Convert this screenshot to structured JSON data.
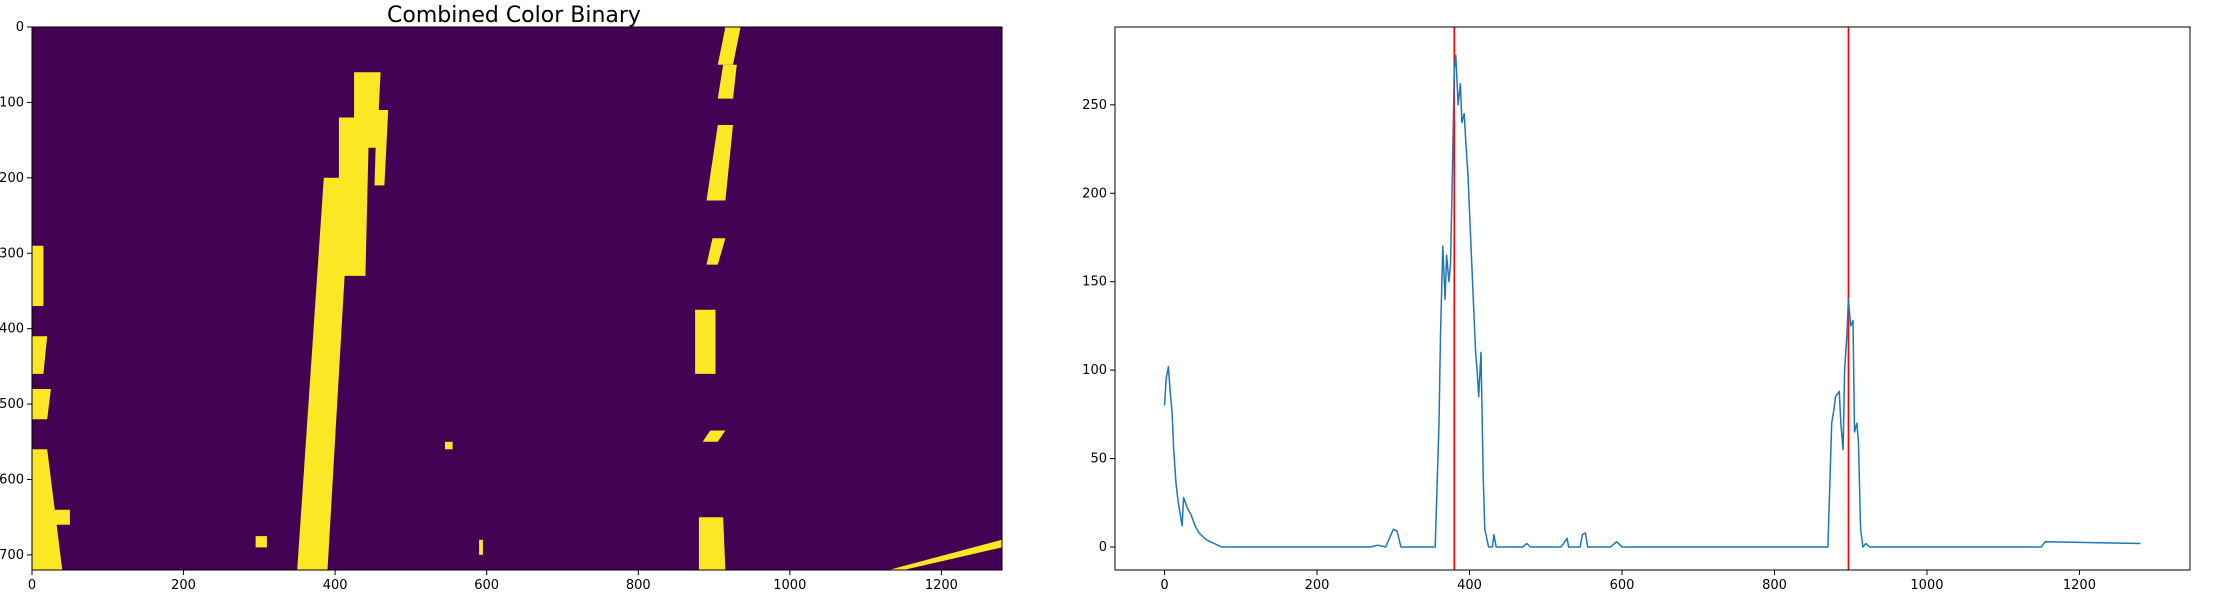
{
  "chart_data": [
    {
      "type": "heatmap",
      "title": "Combined Color Binary",
      "xlim": [
        0,
        1280
      ],
      "ylim": [
        720,
        0
      ],
      "xticks": [
        0,
        200,
        400,
        600,
        800,
        1000,
        1200
      ],
      "yticks": [
        0,
        100,
        200,
        300,
        400,
        500,
        600,
        700
      ],
      "colors": {
        "background": "#440154",
        "foreground": "#fde725"
      },
      "values_description_free": true,
      "bright_regions": [
        {
          "polygon": [
            [
              385,
              200
            ],
            [
              420,
              200
            ],
            [
              390,
              720
            ],
            [
              350,
              720
            ]
          ]
        },
        {
          "polygon": [
            [
              405,
              120
            ],
            [
              445,
              120
            ],
            [
              440,
              330
            ],
            [
              405,
              330
            ]
          ]
        },
        {
          "polygon": [
            [
              425,
              60
            ],
            [
              460,
              60
            ],
            [
              455,
              160
            ],
            [
              425,
              160
            ]
          ]
        },
        {
          "polygon": [
            [
              455,
              110
            ],
            [
              470,
              110
            ],
            [
              465,
              210
            ],
            [
              452,
              210
            ]
          ]
        },
        {
          "polygon": [
            [
              915,
              0
            ],
            [
              935,
              0
            ],
            [
              925,
              50
            ],
            [
              905,
              50
            ]
          ]
        },
        {
          "polygon": [
            [
              912,
              50
            ],
            [
              930,
              50
            ],
            [
              925,
              95
            ],
            [
              905,
              95
            ]
          ]
        },
        {
          "polygon": [
            [
              905,
              130
            ],
            [
              925,
              130
            ],
            [
              915,
              230
            ],
            [
              890,
              230
            ]
          ]
        },
        {
          "polygon": [
            [
              898,
              280
            ],
            [
              915,
              280
            ],
            [
              905,
              315
            ],
            [
              890,
              315
            ]
          ]
        },
        {
          "polygon": [
            [
              875,
              375
            ],
            [
              902,
              375
            ],
            [
              902,
              460
            ],
            [
              875,
              460
            ]
          ]
        },
        {
          "polygon": [
            [
              895,
              535
            ],
            [
              915,
              535
            ],
            [
              905,
              550
            ],
            [
              885,
              550
            ]
          ]
        },
        {
          "polygon": [
            [
              880,
              650
            ],
            [
              912,
              650
            ],
            [
              915,
              720
            ],
            [
              880,
              720
            ]
          ]
        },
        {
          "polygon": [
            [
              0,
              290
            ],
            [
              15,
              290
            ],
            [
              15,
              370
            ],
            [
              0,
              370
            ]
          ]
        },
        {
          "polygon": [
            [
              0,
              410
            ],
            [
              20,
              410
            ],
            [
              15,
              460
            ],
            [
              0,
              460
            ]
          ]
        },
        {
          "polygon": [
            [
              0,
              480
            ],
            [
              25,
              480
            ],
            [
              20,
              520
            ],
            [
              0,
              520
            ]
          ]
        },
        {
          "polygon": [
            [
              0,
              560
            ],
            [
              20,
              560
            ],
            [
              40,
              720
            ],
            [
              0,
              720
            ]
          ]
        },
        {
          "polygon": [
            [
              20,
              640
            ],
            [
              50,
              640
            ],
            [
              50,
              660
            ],
            [
              20,
              660
            ]
          ]
        },
        {
          "polygon": [
            [
              1130,
              720
            ],
            [
              1280,
              680
            ],
            [
              1280,
              690
            ],
            [
              1150,
              720
            ]
          ]
        },
        {
          "polygon": [
            [
              295,
              675
            ],
            [
              310,
              675
            ],
            [
              310,
              690
            ],
            [
              295,
              690
            ]
          ]
        },
        {
          "polygon": [
            [
              545,
              550
            ],
            [
              555,
              550
            ],
            [
              555,
              560
            ],
            [
              545,
              560
            ]
          ]
        },
        {
          "polygon": [
            [
              590,
              680
            ],
            [
              595,
              680
            ],
            [
              595,
              700
            ],
            [
              590,
              700
            ]
          ]
        }
      ]
    },
    {
      "type": "line",
      "xlim": [
        -65,
        1345
      ],
      "ylim": [
        -13,
        294
      ],
      "xticks": [
        0,
        200,
        400,
        600,
        800,
        1000,
        1200
      ],
      "yticks": [
        0,
        50,
        100,
        150,
        200,
        250
      ],
      "series_color": "#1f77b4",
      "vlines": [
        {
          "x": 380,
          "color": "#ff0000"
        },
        {
          "x": 897,
          "color": "#ff0000"
        }
      ],
      "x": [
        0,
        2,
        5,
        7,
        10,
        12,
        15,
        18,
        20,
        23,
        25,
        30,
        35,
        40,
        45,
        50,
        55,
        60,
        65,
        70,
        75,
        80,
        100,
        150,
        200,
        250,
        270,
        280,
        290,
        295,
        300,
        305,
        310,
        320,
        340,
        355,
        360,
        362,
        365,
        368,
        370,
        373,
        375,
        377,
        380,
        382,
        385,
        388,
        390,
        393,
        395,
        398,
        400,
        402,
        405,
        408,
        410,
        412,
        415,
        418,
        420,
        425,
        430,
        432,
        435,
        440,
        470,
        475,
        480,
        520,
        525,
        528,
        530,
        545,
        548,
        552,
        555,
        585,
        590,
        593,
        600,
        650,
        700,
        750,
        800,
        850,
        870,
        875,
        878,
        880,
        885,
        887,
        890,
        892,
        895,
        897,
        900,
        903,
        905,
        908,
        910,
        913,
        916,
        920,
        925,
        930,
        935,
        940,
        1000,
        1100,
        1140,
        1150,
        1155,
        1280
      ],
      "y": [
        80,
        95,
        102,
        90,
        75,
        55,
        36,
        25,
        20,
        12,
        28,
        22,
        18,
        12,
        8,
        6,
        4,
        3,
        2,
        1,
        0,
        0,
        0,
        0,
        0,
        0,
        0,
        1,
        0,
        5,
        10,
        9,
        0,
        0,
        0,
        0,
        70,
        120,
        170,
        140,
        165,
        150,
        160,
        200,
        270,
        278,
        250,
        262,
        240,
        245,
        230,
        210,
        190,
        170,
        140,
        110,
        100,
        85,
        110,
        40,
        10,
        0,
        0,
        7,
        0,
        0,
        0,
        2,
        0,
        0,
        3,
        5,
        0,
        0,
        7,
        8,
        0,
        0,
        2,
        3,
        0,
        0,
        0,
        0,
        0,
        0,
        0,
        70,
        78,
        85,
        88,
        70,
        55,
        100,
        120,
        140,
        125,
        128,
        65,
        70,
        60,
        10,
        0,
        2,
        0,
        0,
        0,
        0,
        0,
        0,
        0,
        0,
        3,
        2
      ]
    }
  ]
}
